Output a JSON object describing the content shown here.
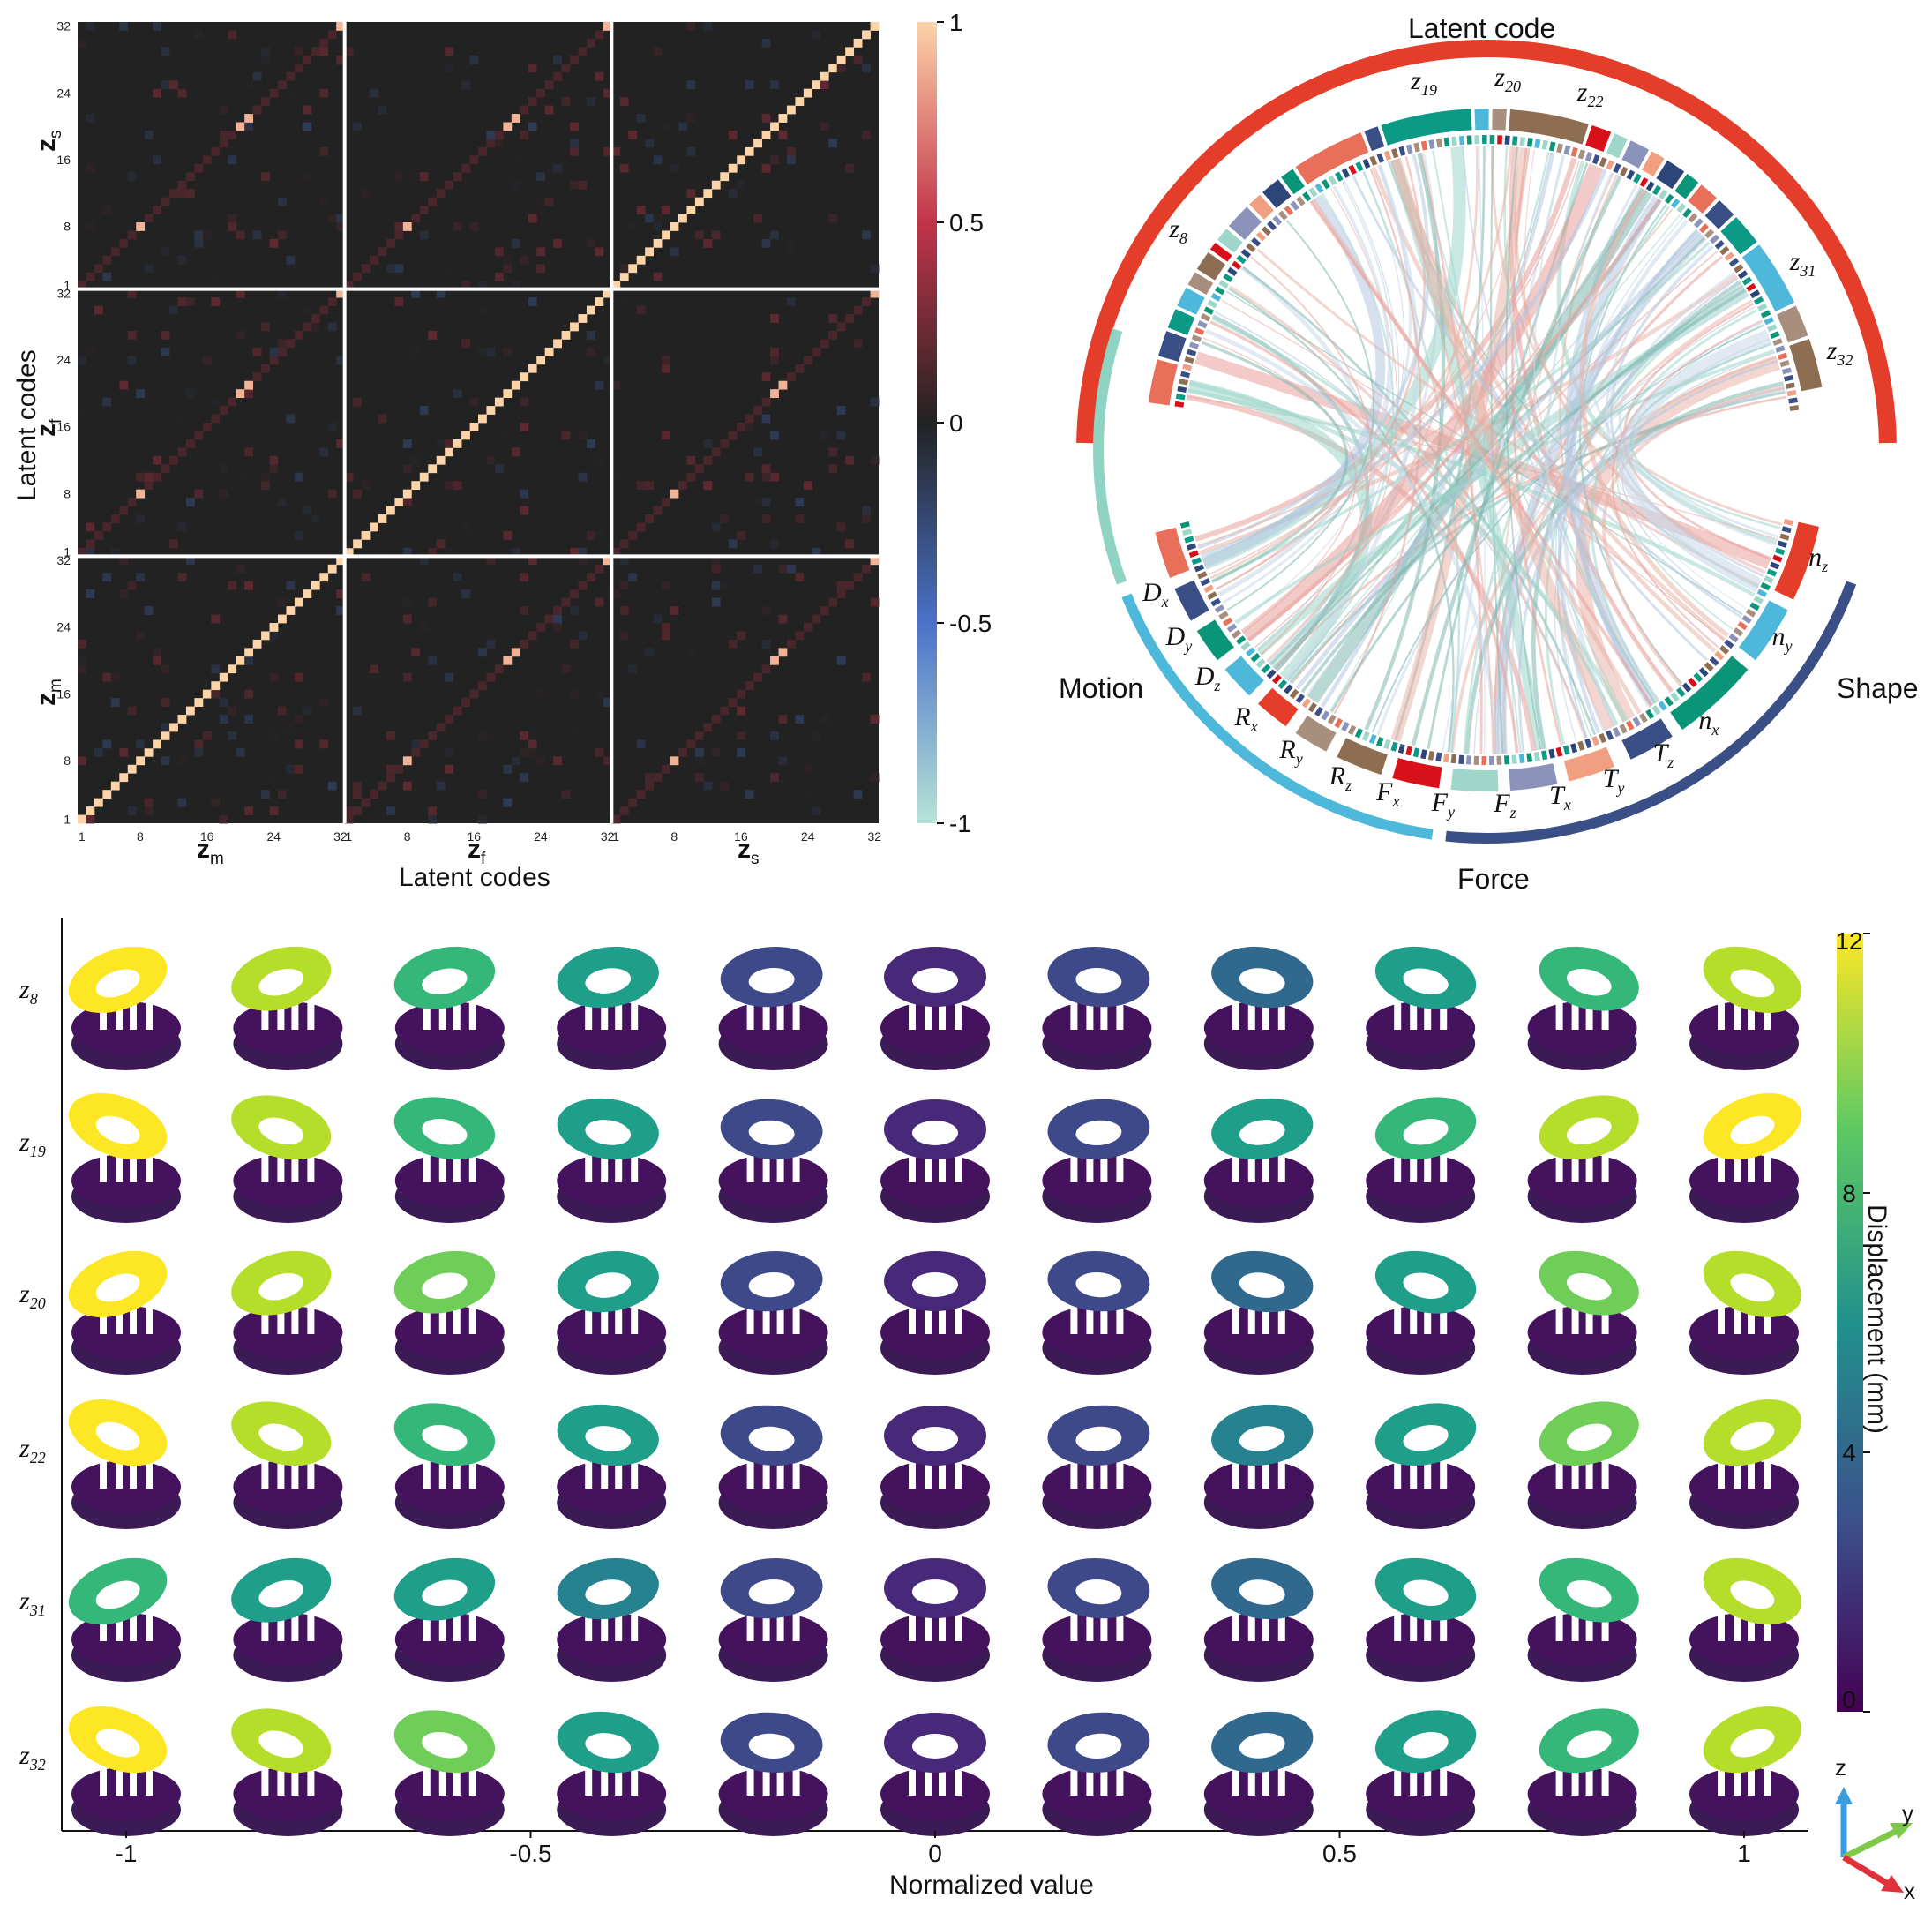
{
  "heatmap": {
    "axis_title_x": "Latent codes",
    "axis_title_y": "Latent codes",
    "block_labels": [
      {
        "main": "z",
        "sub": "m"
      },
      {
        "main": "z",
        "sub": "f"
      },
      {
        "main": "z",
        "sub": "s"
      }
    ],
    "tick_labels": [
      "1",
      "8",
      "16",
      "24",
      "32"
    ],
    "colorbar_ticks": [
      "1",
      "0.5",
      "0",
      "-0.5",
      "-1"
    ],
    "colors": {
      "neg": "#b7e4d8",
      "mid_neg": "#4a72c8",
      "zero": "#222222",
      "mid_pos": "#c2344a",
      "pos": "#fdd3a8"
    }
  },
  "chord": {
    "groups": {
      "latent": "Latent code",
      "motion": "Motion",
      "force": "Force",
      "shape": "Shape"
    },
    "latent_labels": [
      {
        "main": "z",
        "sub": "8"
      },
      {
        "main": "z",
        "sub": "19"
      },
      {
        "main": "z",
        "sub": "20"
      },
      {
        "main": "z",
        "sub": "22"
      },
      {
        "main": "z",
        "sub": "31"
      },
      {
        "main": "z",
        "sub": "32"
      }
    ],
    "motion_labels": [
      {
        "main": "D",
        "sub": "x"
      },
      {
        "main": "D",
        "sub": "y"
      },
      {
        "main": "D",
        "sub": "z"
      },
      {
        "main": "R",
        "sub": "x"
      },
      {
        "main": "R",
        "sub": "y"
      },
      {
        "main": "R",
        "sub": "z"
      }
    ],
    "force_labels": [
      {
        "main": "F",
        "sub": "x"
      },
      {
        "main": "F",
        "sub": "y"
      },
      {
        "main": "F",
        "sub": "z"
      },
      {
        "main": "T",
        "sub": "x"
      },
      {
        "main": "T",
        "sub": "y"
      },
      {
        "main": "T",
        "sub": "z"
      }
    ],
    "shape_labels": [
      {
        "main": "n",
        "sub": "x"
      },
      {
        "main": "n",
        "sub": "y"
      },
      {
        "main": "n",
        "sub": "z"
      }
    ],
    "colors": {
      "latent": "#e43d2a",
      "motion": "#8fd3c3",
      "force": "#4db8d9",
      "shape": "#3a4f86"
    }
  },
  "traversal": {
    "row_labels": [
      {
        "main": "z",
        "sub": "8"
      },
      {
        "main": "z",
        "sub": "19"
      },
      {
        "main": "z",
        "sub": "20"
      },
      {
        "main": "z",
        "sub": "22"
      },
      {
        "main": "z",
        "sub": "31"
      },
      {
        "main": "z",
        "sub": "32"
      }
    ],
    "x_ticks": [
      "-1",
      "-0.5",
      "0",
      "0.5",
      "1"
    ],
    "xlabel": "Normalized value",
    "colorbar_label": "Displacement (mm)",
    "colorbar_ticks": [
      "12",
      "8",
      "4",
      "0"
    ],
    "axes_labels": {
      "z": "z",
      "y": "y",
      "x": "x"
    }
  },
  "chart_data": [
    {
      "type": "heatmap",
      "description_of_structure": "96x96 correlation matrix of latent codes z_m, z_f, z_s (32 each)",
      "xlabel": "Latent codes",
      "ylabel": "Latent codes",
      "blocks": [
        "z_m",
        "z_f",
        "z_s"
      ],
      "block_size": 32,
      "vrange": [
        -1,
        1
      ],
      "diagonal_value": 1,
      "strong_offdiag_codes": [
        8,
        20,
        21,
        32
      ],
      "strong_offdiag_value": 0.9
    },
    {
      "type": "chord",
      "groups": [
        "Latent code",
        "Motion",
        "Force",
        "Shape"
      ]
    },
    {
      "type": "table",
      "title": "",
      "xlabel": "Normalized value",
      "x": [
        -1,
        -0.8,
        -0.6,
        -0.4,
        -0.2,
        0,
        0.2,
        0.4,
        0.6,
        0.8,
        1
      ],
      "rows": [
        "z8",
        "z19",
        "z20",
        "z22",
        "z31",
        "z32"
      ],
      "colorbar": {
        "label": "Displacement (mm)",
        "range": [
          0,
          12
        ]
      },
      "max_displacement": [
        [
          12,
          10,
          8,
          6,
          3,
          1,
          2,
          4,
          6,
          8,
          10
        ],
        [
          12,
          10,
          8,
          6,
          3,
          1,
          3,
          6,
          8,
          11,
          12
        ],
        [
          12,
          11,
          9,
          6,
          3,
          1,
          2,
          4,
          6,
          9,
          11
        ],
        [
          12,
          10,
          8,
          6,
          3,
          1,
          3,
          5,
          7,
          9,
          10
        ],
        [
          8,
          7,
          6,
          5,
          3,
          1,
          2,
          4,
          6,
          8,
          10
        ],
        [
          12,
          10,
          9,
          6,
          3,
          1,
          2,
          4,
          6,
          8,
          10
        ]
      ]
    }
  ]
}
